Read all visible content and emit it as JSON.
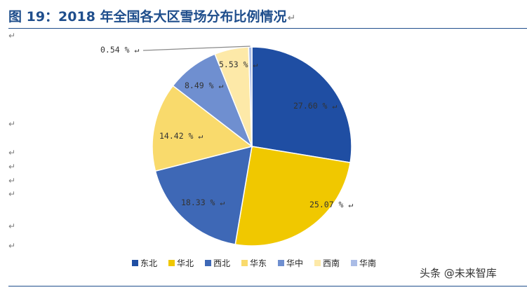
{
  "header": {
    "title": "图 19：2018 年全国各大区雪场分布比例情况",
    "return_mark": "↵"
  },
  "margin_marks": [
    "↵",
    "↵",
    "↵",
    "↵",
    "↵",
    "↵",
    "↵",
    "↵"
  ],
  "watermark": "头条 @未来智库",
  "chart_data": {
    "type": "pie",
    "title": "",
    "unit": "%",
    "slices": [
      {
        "label": "东北",
        "value": 27.6,
        "value_text": "27.60",
        "color": "#1f4ea3",
        "legend_color": "#1f4ea3"
      },
      {
        "label": "华北",
        "value": 25.07,
        "value_text": "25.07",
        "color": "#f0c800",
        "legend_color": "#f0c800"
      },
      {
        "label": "西北",
        "value": 18.33,
        "value_text": "18.33",
        "color": "#3e68b6",
        "legend_color": "#3e68b6"
      },
      {
        "label": "华东",
        "value": 14.42,
        "value_text": "14.42",
        "color": "#f9da6c",
        "legend_color": "#f9da6c"
      },
      {
        "label": "华中",
        "value": 8.49,
        "value_text": "8.49",
        "color": "#6f8fd0",
        "legend_color": "#6f8fd0"
      },
      {
        "label": "西南",
        "value": 5.53,
        "value_text": "5.53",
        "color": "#fde9a8",
        "legend_color": "#fde9a8"
      },
      {
        "label": "华南",
        "value": 0.54,
        "value_text": "0.54",
        "color": "#aabce6",
        "legend_color": "#aabce6"
      }
    ],
    "legend": {
      "position": "bottom",
      "labels": [
        "东北",
        "华北",
        "西北",
        "华东",
        "华中",
        "西南",
        "华南"
      ]
    }
  }
}
